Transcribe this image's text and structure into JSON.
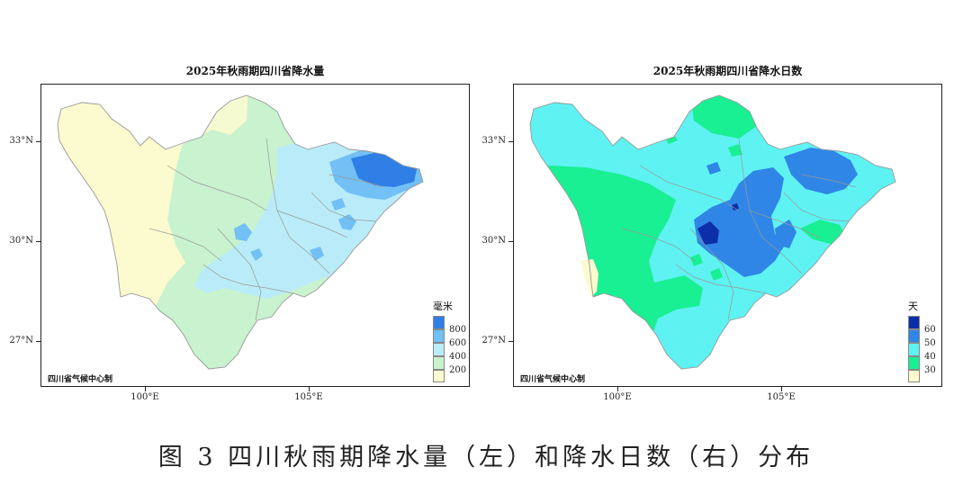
{
  "left_map": {
    "title": "2025年秋雨期四川省降水量",
    "credit": "四川省气候中心制",
    "legend": {
      "unit": "毫米",
      "ticks": [
        "800",
        "600",
        "400",
        "200"
      ],
      "colors": [
        "#2f7fe6",
        "#72c0f5",
        "#b9ecf8",
        "#c9f2cf",
        "#fbfbcf"
      ]
    },
    "lat_labels": [
      "33°N",
      "30°N",
      "27°N"
    ],
    "lon_labels": [
      "100°E",
      "105°E"
    ]
  },
  "right_map": {
    "title": "2025年秋雨期四川省降水日数",
    "credit": "四川省气候中心制",
    "legend": {
      "unit": "天",
      "ticks": [
        "60",
        "50",
        "40",
        "30"
      ],
      "colors": [
        "#0c2ea8",
        "#2f86e6",
        "#5ff2f2",
        "#19ef93",
        "#fbfbcf"
      ]
    },
    "lat_labels": [
      "33°N",
      "30°N",
      "27°N"
    ],
    "lon_labels": [
      "100°E",
      "105°E"
    ]
  },
  "caption": "图 3 四川秋雨期降水量（左）和降水日数（右）分布"
}
